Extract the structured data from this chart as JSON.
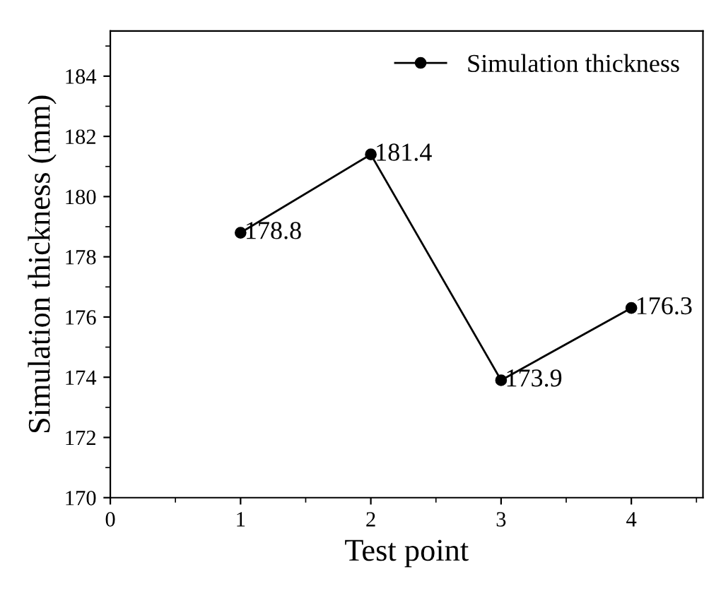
{
  "chart_data": {
    "type": "line",
    "xlabel": "Test point",
    "ylabel": "Simulation thickness (mm)",
    "x": [
      1,
      2,
      3,
      4
    ],
    "series": [
      {
        "name": "Simulation thickness",
        "color": "#000000",
        "values": [
          178.8,
          181.4,
          173.9,
          176.3
        ]
      }
    ],
    "xlim": [
      0,
      4.55
    ],
    "xticks": [
      0,
      1,
      2,
      3,
      4
    ],
    "ylim": [
      170,
      185.5
    ],
    "yticks": [
      170,
      172,
      174,
      176,
      178,
      180,
      182,
      184
    ],
    "data_labels": true,
    "marker": "circle",
    "line_style": "solid",
    "legend": "top right",
    "grid": false
  }
}
